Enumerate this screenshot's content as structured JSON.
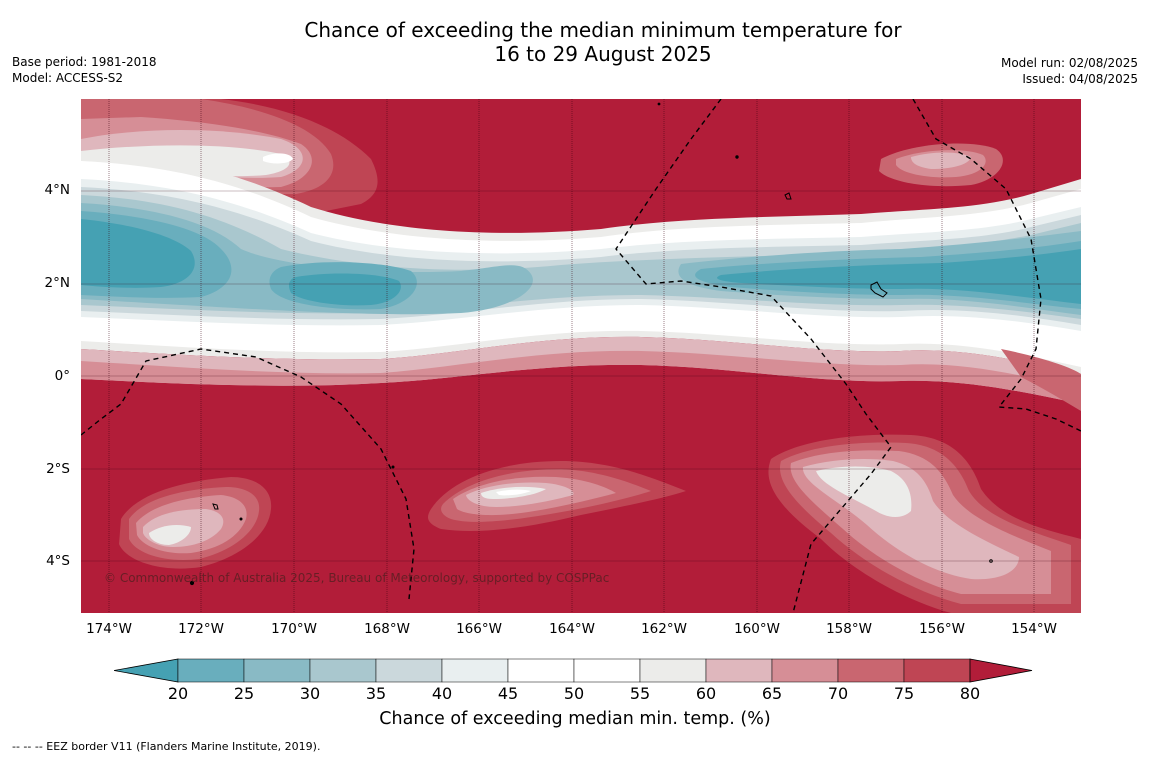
{
  "header": {
    "title_line1": "Chance of exceeding the median minimum temperature for",
    "title_line2": "16 to 29 August 2025",
    "base_period": "Base period: 1981-2018",
    "model": "Model: ACCESS-S2",
    "model_run": "Model run: 02/08/2025",
    "issued": "Issued: 04/08/2025"
  },
  "map": {
    "lat_labels": [
      "4°N",
      "2°N",
      "0°",
      "2°S",
      "4°S"
    ],
    "lon_labels": [
      "174°W",
      "172°W",
      "170°W",
      "168°W",
      "166°W",
      "164°W",
      "162°W",
      "160°W",
      "158°W",
      "156°W",
      "154°W"
    ],
    "copyright": "© Commonwealth of Australia 2025, Bureau of Meteorology, supported by COSPPac"
  },
  "colorbar": {
    "ticks": [
      "20",
      "25",
      "30",
      "35",
      "40",
      "45",
      "50",
      "55",
      "60",
      "65",
      "70",
      "75",
      "80"
    ],
    "colors": [
      "#45a1b3",
      "#69aebd",
      "#89bac5",
      "#a9c7ce",
      "#cbd8dc",
      "#e9eff0",
      "#ffffff",
      "#ffffff",
      "#ececea",
      "#dfb7bd",
      "#d68e96",
      "#c96670",
      "#bf4554",
      "#b21d39"
    ],
    "title": "Chance of exceeding median min. temp. (%)"
  },
  "footer": {
    "legend": "--  --  -- EEZ border V11 (Flanders Marine Institute, 2019)."
  }
}
